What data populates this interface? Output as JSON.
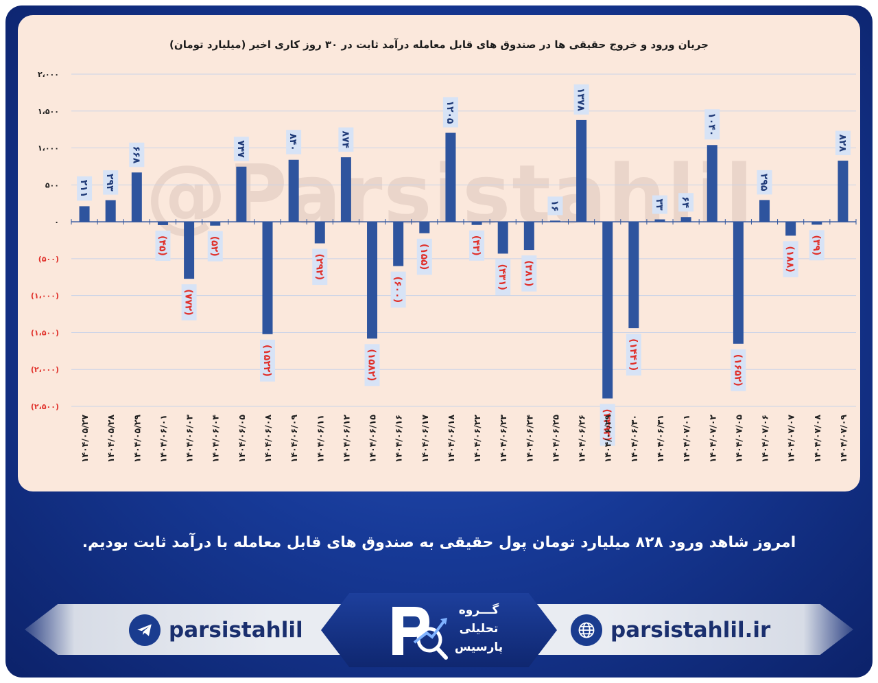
{
  "chart_data": {
    "type": "bar",
    "title": "جریان ورود و خروج حقیقی ها در صندوق های قابل معامله درآمد ثابت در ۳۰ روز کاری اخیر (میلیارد تومان)",
    "categories": [
      "۱۴۰۴/۰۵/۲۷",
      "۱۴۰۴/۰۵/۲۸",
      "۱۴۰۴/۰۵/۲۹",
      "۱۴۰۴/۰۶/۰۱",
      "۱۴۰۴/۰۶/۰۳",
      "۱۴۰۴/۰۶/۰۴",
      "۱۴۰۴/۰۶/۰۵",
      "۱۴۰۴/۰۶/۰۸",
      "۱۴۰۴/۰۶/۰۹",
      "۱۴۰۴/۰۶/۱۱",
      "۱۴۰۴/۰۶/۱۲",
      "۱۴۰۴/۰۶/۱۵",
      "۱۴۰۴/۰۶/۱۶",
      "۱۴۰۴/۰۶/۱۷",
      "۱۴۰۴/۰۶/۱۸",
      "۱۴۰۴/۰۶/۲۲",
      "۱۴۰۴/۰۶/۲۳",
      "۱۴۰۴/۰۶/۲۴",
      "۱۴۰۴/۰۶/۲۵",
      "۱۴۰۴/۰۶/۲۶",
      "۱۴۰۴/۰۶/۲۹",
      "۱۴۰۴/۰۶/۳۰",
      "۱۴۰۴/۰۶/۳۱",
      "۱۴۰۴/۰۷/۰۱",
      "۱۴۰۴/۰۷/۰۲",
      "۱۴۰۴/۰۷/۰۵",
      "۱۴۰۴/۰۷/۰۶",
      "۱۴۰۴/۰۷/۰۷",
      "۱۴۰۴/۰۷/۰۸",
      "۱۴۰۴/۰۷/۰۹"
    ],
    "values": [
      211,
      293,
      668,
      -45,
      -772,
      -52,
      747,
      -1522,
      840,
      -292,
      874,
      -1582,
      -600,
      -155,
      1205,
      -43,
      -431,
      -381,
      16,
      1378,
      -2393,
      -1441,
      33,
      64,
      1040,
      -1652,
      295,
      -188,
      -39,
      828
    ],
    "data_labels": [
      "۲۱۱",
      "۲۹۳",
      "۶۶۸",
      "(۴۵)",
      "(۷۷۲)",
      "(۵۲)",
      "۷۴۷",
      "(۱۵۲۲)",
      "۸۴۰",
      "(۲۹۲)",
      "۸۷۴",
      "(۱۵۸۲)",
      "(۶۰۰)",
      "(۱۵۵)",
      "۱۲۰۵",
      "(۴۳)",
      "(۴۳۱)",
      "(۳۸۱)",
      "۱۶",
      "۱۳۷۸",
      "(۲۳۹۳)",
      "(۱۴۴۱)",
      "۳۳",
      "۶۴",
      "۱۰۴۰",
      "(۱۶۵۲)",
      "۲۹۵",
      "(۱۸۸)",
      "(۳۹)",
      "۸۲۸"
    ],
    "yticks": [
      2000,
      1500,
      1000,
      500,
      0,
      -500,
      -1000,
      -1500,
      -2000,
      -2500
    ],
    "ytick_labels": [
      "۲،۰۰۰",
      "۱،۵۰۰",
      "۱،۰۰۰",
      "۵۰۰",
      "۰",
      "(۵۰۰)",
      "(۱،۰۰۰)",
      "(۱،۵۰۰)",
      "(۲،۰۰۰)",
      "(۲،۵۰۰)"
    ],
    "ylim": [
      -2500,
      2000
    ],
    "grid": true,
    "xlabel": "",
    "ylabel": "",
    "colors": {
      "bar": "#2e549e",
      "label_box": "#d7e3f6",
      "positive_label": "#1f3a78",
      "negative_label": "#e0302a",
      "grid": "#c9d3e8",
      "axis_text": "#1d1d1d",
      "negative_tick": "#e0302a"
    }
  },
  "watermark": "@Parsistahlil",
  "caption": "امروز شاهد ورود ۸۲۸ میلیارد تومان پول حقیقی به صندوق های قابل معامله با درآمد ثابت بودیم.",
  "footer": {
    "telegram": {
      "label": "parsistahlil",
      "icon": "telegram-icon"
    },
    "website": {
      "label": "parsistahlil.ir",
      "icon": "globe-icon"
    },
    "logo": {
      "line1": "گـــروه",
      "line2": "تحلیلی",
      "line3": "پارسیس"
    }
  }
}
